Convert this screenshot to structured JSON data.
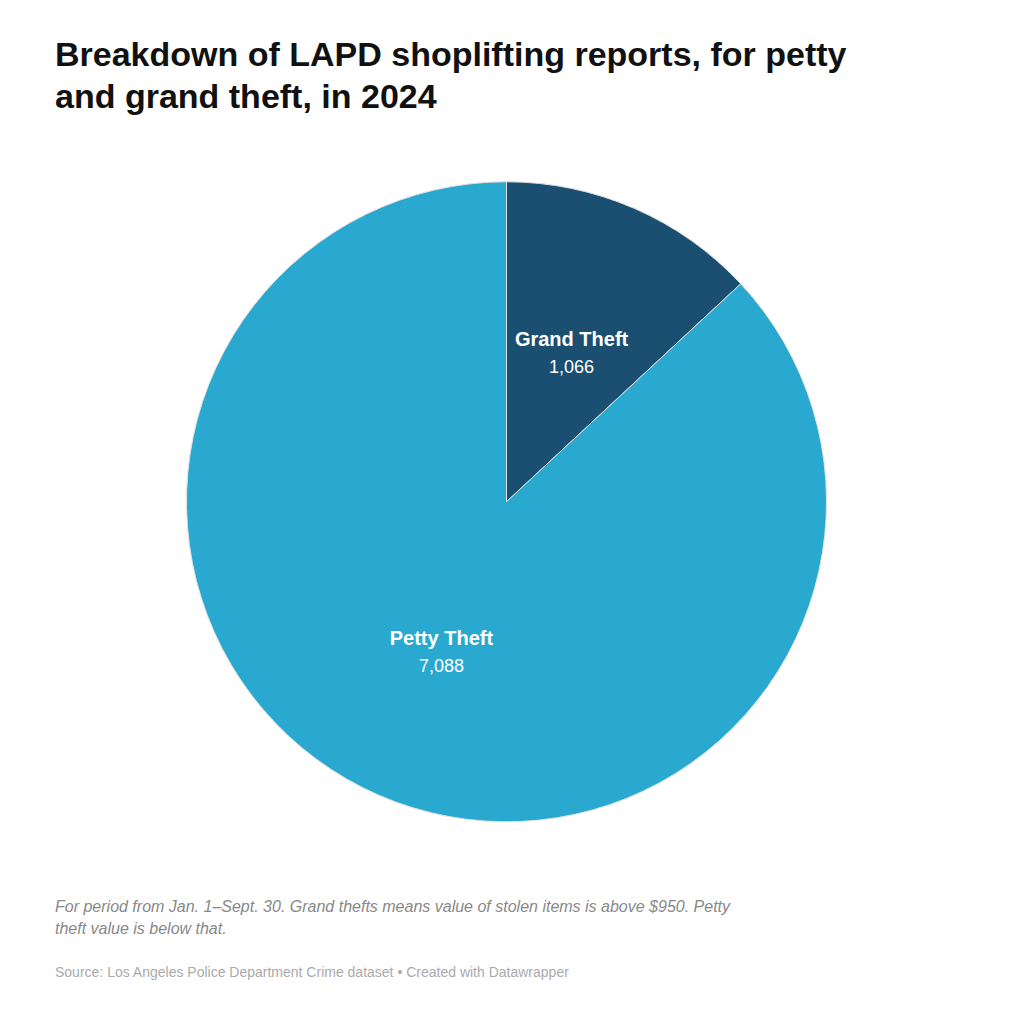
{
  "chart_data": {
    "type": "pie",
    "title": "Breakdown of LAPD shoplifting reports, for petty\nand grand theft, in 2024",
    "categories": [
      "Grand Theft",
      "Petty Theft"
    ],
    "values": [
      1066,
      7088
    ],
    "value_labels": [
      "1,066",
      "7,088"
    ],
    "colors": [
      "#1b4f72",
      "#29a8d0"
    ],
    "data_labels": true,
    "legend": false,
    "annotations": [
      "For period from Jan. 1–Sept. 30. Grand thefts means value of stolen items is above $950. Petty\ntheft value is below that.",
      "Source: Los Angeles Police Department Crime dataset • Created with Datawrapper"
    ]
  }
}
